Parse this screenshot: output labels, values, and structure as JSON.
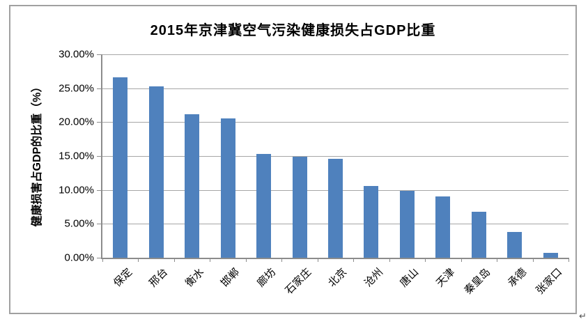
{
  "figure": {
    "paragraph_mark": "↵"
  },
  "chart_data": {
    "type": "bar",
    "title": "2015年京津冀空气污染健康损失占GDP比重",
    "ylabel": "健康损害占GDP的比重（%）",
    "xlabel": "",
    "categories": [
      "保定",
      "邢台",
      "衡水",
      "邯郸",
      "廊坊",
      "石家庄",
      "北京",
      "沧州",
      "唐山",
      "天津",
      "秦皇岛",
      "承德",
      "张家口"
    ],
    "values": [
      26.6,
      25.3,
      21.2,
      20.5,
      15.3,
      14.9,
      14.6,
      10.6,
      9.9,
      9.0,
      6.8,
      3.8,
      0.7
    ],
    "y_ticks": [
      "0.00%",
      "5.00%",
      "10.00%",
      "15.00%",
      "20.00%",
      "25.00%",
      "30.00%"
    ],
    "ylim": [
      0,
      30
    ],
    "grid": true,
    "legend": false,
    "bar_color": "#4F81BD",
    "gridline_color": "#A6A6A6",
    "axis_color": "#8C8C8C",
    "border_color": "#A0A0A0"
  }
}
